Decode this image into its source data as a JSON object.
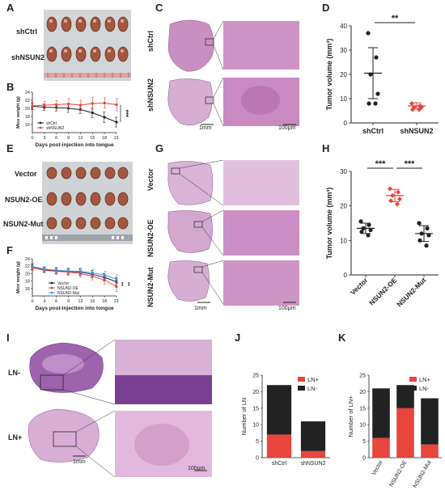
{
  "panels": {
    "A": {
      "label": "A",
      "rows": [
        "shCtrl",
        "shNSUN2"
      ]
    },
    "C": {
      "label": "C",
      "rows": [
        "shCtrl",
        "shNSUN2"
      ],
      "scale_low": "1mm",
      "scale_high": "100μm"
    },
    "E": {
      "label": "E",
      "rows": [
        "Vector",
        "NSUN2-OE",
        "NSUN2-Mut"
      ]
    },
    "G": {
      "label": "G",
      "rows": [
        "Vector",
        "NSUN2-OE",
        "NSUN2-Mut"
      ],
      "scale_low": "1mm",
      "scale_high": "100μm"
    },
    "I": {
      "label": "I",
      "rows": [
        "LN-",
        "LN+"
      ],
      "scale_low": "1mm",
      "scale_high": "100μm"
    }
  },
  "colors": {
    "red": "#e8453c",
    "black": "#222222",
    "blue": "#4a90d9",
    "tissue": "#c98fc0",
    "tissue_dark": "#8e4a9a"
  },
  "chart_data": [
    {
      "id": "B",
      "label": "B",
      "type": "line",
      "xlabel": "Days post-injection into tongue",
      "ylabel": "Mice weight (g)",
      "x": [
        0,
        3,
        6,
        9,
        12,
        15,
        18,
        21
      ],
      "ylim": [
        14,
        24
      ],
      "yticks": [
        16,
        18,
        20,
        22,
        24
      ],
      "series": [
        {
          "name": "shCtrl",
          "color": "#222222",
          "values": [
            20.5,
            20.3,
            20.2,
            20.0,
            19.7,
            18.9,
            17.8,
            16.6
          ],
          "err": [
            0.8,
            0.8,
            0.9,
            1.0,
            1.0,
            1.2,
            1.3,
            1.2
          ]
        },
        {
          "name": "shNSUN2",
          "color": "#e8453c",
          "values": [
            20.6,
            20.8,
            20.9,
            21.1,
            20.8,
            21.2,
            21.3,
            20.9
          ],
          "err": [
            0.8,
            0.9,
            1.0,
            1.3,
            1.2,
            1.5,
            1.3,
            1.5
          ]
        }
      ],
      "annotation": "***"
    },
    {
      "id": "D",
      "label": "D",
      "type": "scatter",
      "ylabel": "Tumor volume (mm³)",
      "categories": [
        "shCtrl",
        "shNSUN2"
      ],
      "ylim": [
        0,
        40
      ],
      "yticks": [
        0,
        10,
        20,
        30,
        40
      ],
      "series": [
        {
          "name": "shCtrl",
          "color": "#222222",
          "marker": "circle",
          "points": [
            37,
            27,
            20,
            12,
            8,
            8
          ],
          "mean": 20.5,
          "sd": 10.5
        },
        {
          "name": "shNSUN2",
          "color": "#e8453c",
          "marker": "diamond",
          "points": [
            8,
            7,
            6.5,
            6.5,
            5.5,
            5.5
          ],
          "mean": 7,
          "sd": 1.3
        }
      ],
      "significance": [
        {
          "from": 0,
          "to": 1,
          "label": "**"
        }
      ]
    },
    {
      "id": "F",
      "label": "F",
      "type": "line",
      "xlabel": "Days post-injection into tongue",
      "ylabel": "Mice weight (g)",
      "x": [
        0,
        3,
        6,
        9,
        12,
        15,
        18,
        21
      ],
      "ylim": [
        14,
        24
      ],
      "yticks": [
        16,
        18,
        20,
        22,
        24
      ],
      "series": [
        {
          "name": "Vector",
          "color": "#222222",
          "values": [
            21.8,
            21.1,
            20.8,
            20.6,
            20.4,
            19.8,
            19.0,
            17.8
          ],
          "err": [
            0.8,
            0.7,
            0.8,
            0.8,
            0.9,
            1.0,
            1.0,
            1.2
          ]
        },
        {
          "name": "NSUN2-OE",
          "color": "#e8453c",
          "values": [
            21.6,
            20.9,
            20.6,
            20.4,
            20.0,
            19.3,
            18.3,
            16.5
          ],
          "err": [
            0.8,
            0.7,
            0.8,
            0.8,
            0.9,
            1.0,
            1.1,
            1.3
          ]
        },
        {
          "name": "NSUN2-Mut",
          "color": "#4a90d9",
          "values": [
            21.9,
            21.2,
            20.9,
            20.7,
            20.6,
            20.2,
            19.6,
            18.5
          ],
          "err": [
            0.8,
            0.7,
            0.8,
            0.8,
            0.9,
            1.0,
            1.0,
            1.2
          ]
        }
      ],
      "annotation": [
        "**",
        "**"
      ]
    },
    {
      "id": "H",
      "label": "H",
      "type": "scatter",
      "ylabel": "Tumor volume (mm³)",
      "categories": [
        "Vector",
        "NSUN2-OE",
        "NSUN2-Mut"
      ],
      "ylim": [
        0,
        30
      ],
      "yticks": [
        0,
        10,
        20,
        30
      ],
      "series": [
        {
          "name": "Vector",
          "color": "#222222",
          "marker": "circle",
          "points": [
            15.5,
            14.5,
            13.5,
            13,
            12.5,
            11.5
          ],
          "mean": 13.5,
          "sd": 1.5
        },
        {
          "name": "NSUN2-OE",
          "color": "#e8453c",
          "marker": "diamond",
          "points": [
            25,
            24,
            23,
            22,
            21.5,
            20.5
          ],
          "mean": 23,
          "sd": 1.8
        },
        {
          "name": "NSUN2-Mut",
          "color": "#222222",
          "marker": "circle",
          "points": [
            15,
            13.5,
            12,
            11.5,
            10,
            8.5
          ],
          "mean": 12,
          "sd": 2.3
        }
      ],
      "significance": [
        {
          "from": 0,
          "to": 1,
          "label": "***"
        },
        {
          "from": 1,
          "to": 2,
          "label": "***"
        }
      ]
    },
    {
      "id": "J",
      "label": "J",
      "type": "bar",
      "ylabel": "Number of LN",
      "categories": [
        "shCtrl",
        "shNSUN2"
      ],
      "ylim": [
        0,
        25
      ],
      "yticks": [
        0,
        5,
        10,
        15,
        20,
        25
      ],
      "series": [
        {
          "name": "LN+",
          "color": "#e8453c",
          "values": [
            7,
            2
          ]
        },
        {
          "name": "LN-",
          "color": "#222222",
          "values": [
            15,
            9
          ]
        }
      ],
      "legend": "top-right"
    },
    {
      "id": "K",
      "label": "K",
      "type": "bar",
      "ylabel": "Number of LN+",
      "categories": [
        "Vector",
        "NSUN2-OE",
        "NSUN2-Mut"
      ],
      "ylim": [
        0,
        25
      ],
      "yticks": [
        0,
        5,
        10,
        15,
        20,
        25
      ],
      "series": [
        {
          "name": "LN+",
          "color": "#e8453c",
          "values": [
            6,
            15,
            4
          ]
        },
        {
          "name": "LN-",
          "color": "#222222",
          "values": [
            15,
            7,
            14
          ]
        }
      ],
      "legend": "top-right"
    }
  ]
}
